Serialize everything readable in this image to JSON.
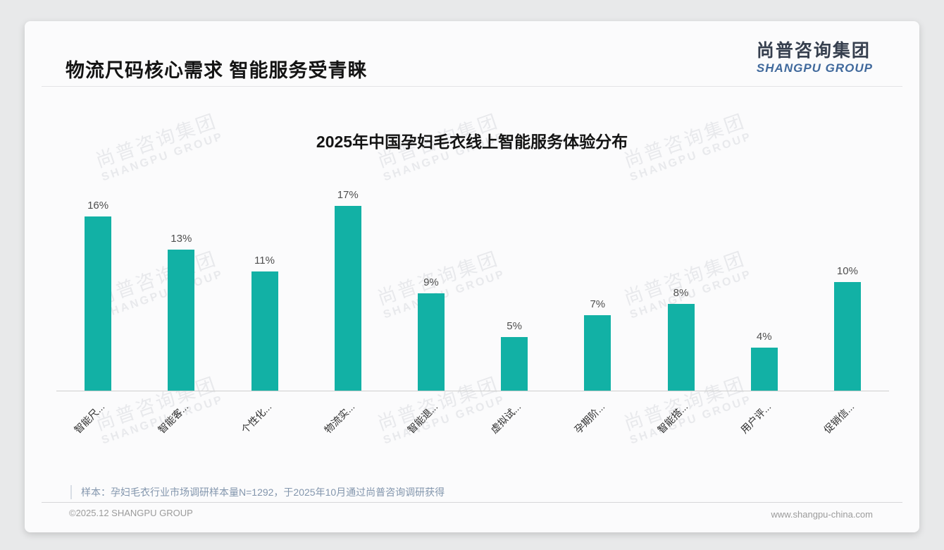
{
  "page_title": "物流尺码核心需求 智能服务受青睐",
  "logo": {
    "cn": "尚普咨询集团",
    "en": "SHANGPU GROUP"
  },
  "watermark": {
    "cn": "尚普咨询集团",
    "en": "SHANGPU GROUP"
  },
  "chart_data": {
    "type": "bar",
    "title": "2025年中国孕妇毛衣线上智能服务体验分布",
    "categories": [
      "智能尺...",
      "智能客...",
      "个性化...",
      "物流实...",
      "智能退...",
      "虚拟试...",
      "孕期阶...",
      "智能搭...",
      "用户评...",
      "促销信..."
    ],
    "values": [
      16,
      13,
      11,
      17,
      9,
      5,
      7,
      8,
      4,
      10
    ],
    "unit": "%",
    "bar_color": "#12b1a5",
    "xlabel": "",
    "ylabel": "",
    "ylim": [
      0,
      20
    ],
    "grid": false,
    "legend": false,
    "y_axis_visible": false,
    "value_labels_position": "above-bars",
    "x_tick_rotation_deg": -45
  },
  "note": {
    "text": "样本：孕妇毛衣行业市场调研样本量N=1292，于2025年10月通过尚普咨询调研获得"
  },
  "footer": {
    "left": "©2025.12 SHANGPU GROUP",
    "right": "www.shangpu-china.com"
  },
  "colors": {
    "bar": "#12b1a5",
    "card_bg": "#fbfbfc",
    "page_bg": "#e8e9ea",
    "logo_en_blue": "#40699c",
    "note_text": "#8396ad"
  }
}
